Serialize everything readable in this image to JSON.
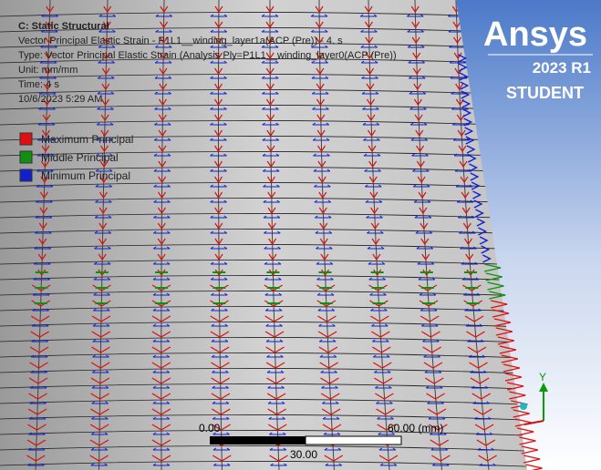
{
  "header": {
    "title": "C: Static Structural",
    "lines": [
      "Vector Principal Elastic Strain - P1L1__winding_layer1a(ACP (Pre)) - 4. s",
      "Type: Vector Principal Elastic Strain (Analysis Ply=P1L1__winding_layer0(ACP (Pre))",
      "Unit: mm/mm",
      "Time: 4 s",
      "10/6/2023 5:29 AM"
    ]
  },
  "legend": [
    {
      "label": "Maximum Principal",
      "color": "#e01010"
    },
    {
      "label": "Middle Principal",
      "color": "#109010"
    },
    {
      "label": "Minimum Principal",
      "color": "#1020d0"
    }
  ],
  "logo": {
    "brand": "Ansys",
    "version": "2023 R1",
    "edition": "STUDENT"
  },
  "scale_bar": {
    "start": "0.00",
    "end": "60.00 (mm)",
    "middle": "30.00"
  },
  "triad": {
    "axis": "Y"
  }
}
